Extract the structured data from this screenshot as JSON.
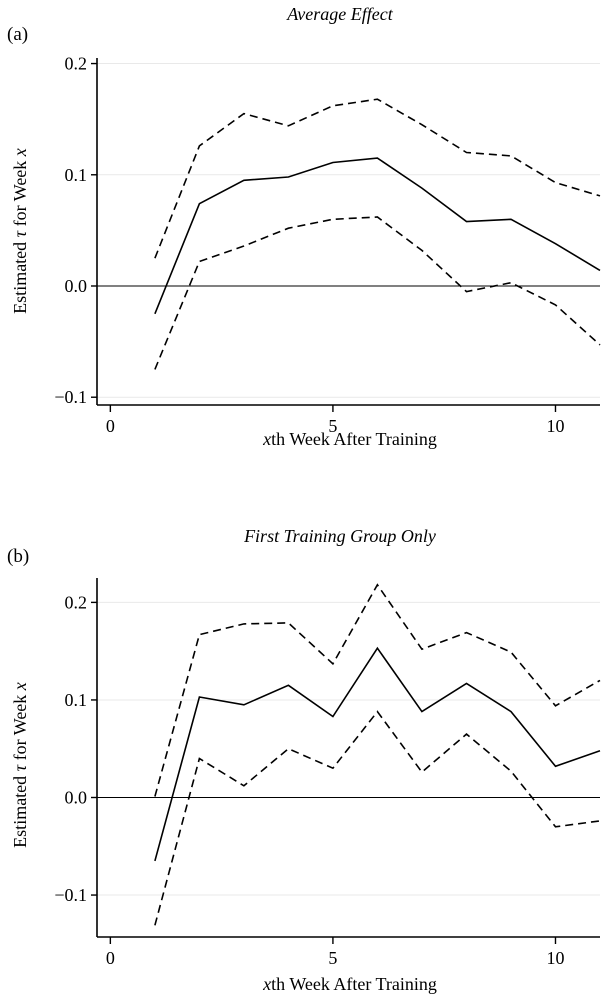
{
  "chart_data": [
    {
      "panel_label": "(a)",
      "title": "Average Effect",
      "type": "line",
      "xlabel_math": "x",
      "xlabel_rest": "th Week After Training",
      "ylabel_main": "Estimated ",
      "ylabel_math": "τ",
      "ylabel_rest": " for Week ",
      "ylabel_var": "x",
      "xlim": [
        -0.3,
        11
      ],
      "ylim": [
        -0.107,
        0.205
      ],
      "xticks": [
        0,
        5,
        10
      ],
      "xtick_labels": [
        "0",
        "5",
        "10"
      ],
      "yticks": [
        -0.1,
        0.0,
        0.1,
        0.2
      ],
      "ytick_labels": [
        "−0.1",
        "0.0",
        "0.1",
        "0.2"
      ],
      "zero_line": 0,
      "grid": "horizontal",
      "x": [
        1,
        2,
        3,
        4,
        5,
        6,
        7,
        8,
        9,
        10,
        11
      ],
      "series": [
        {
          "role": "estimate",
          "style": "solid",
          "values": [
            -0.025,
            0.074,
            0.095,
            0.098,
            0.111,
            0.115,
            0.088,
            0.058,
            0.06,
            0.038,
            0.014
          ]
        },
        {
          "role": "upper",
          "style": "dashed",
          "values": [
            0.025,
            0.126,
            0.155,
            0.144,
            0.162,
            0.168,
            0.145,
            0.12,
            0.117,
            0.093,
            0.081
          ]
        },
        {
          "role": "lower",
          "style": "dashed",
          "values": [
            -0.075,
            0.022,
            0.036,
            0.052,
            0.06,
            0.062,
            0.032,
            -0.005,
            0.003,
            -0.017,
            -0.053
          ]
        }
      ]
    },
    {
      "panel_label": "(b)",
      "title": "First Training Group Only",
      "type": "line",
      "xlabel_math": "x",
      "xlabel_rest": "th Week After Training",
      "ylabel_main": "Estimated ",
      "ylabel_math": "τ",
      "ylabel_rest": " for Week ",
      "ylabel_var": "x",
      "xlim": [
        -0.3,
        11
      ],
      "ylim": [
        -0.143,
        0.225
      ],
      "xticks": [
        0,
        5,
        10
      ],
      "xtick_labels": [
        "0",
        "5",
        "10"
      ],
      "yticks": [
        -0.1,
        0.0,
        0.1,
        0.2
      ],
      "ytick_labels": [
        "−0.1",
        "0.0",
        "0.1",
        "0.2"
      ],
      "zero_line": 0,
      "grid": "horizontal",
      "x": [
        1,
        2,
        3,
        4,
        5,
        6,
        7,
        8,
        9,
        10,
        11
      ],
      "series": [
        {
          "role": "estimate",
          "style": "solid",
          "values": [
            -0.065,
            0.103,
            0.095,
            0.115,
            0.083,
            0.153,
            0.088,
            0.117,
            0.088,
            0.032,
            0.048
          ]
        },
        {
          "role": "upper",
          "style": "dashed",
          "values": [
            0.001,
            0.167,
            0.178,
            0.179,
            0.137,
            0.218,
            0.152,
            0.169,
            0.149,
            0.094,
            0.12
          ]
        },
        {
          "role": "lower",
          "style": "dashed",
          "values": [
            -0.131,
            0.04,
            0.012,
            0.05,
            0.03,
            0.088,
            0.026,
            0.065,
            0.027,
            -0.03,
            -0.024
          ]
        }
      ]
    }
  ]
}
